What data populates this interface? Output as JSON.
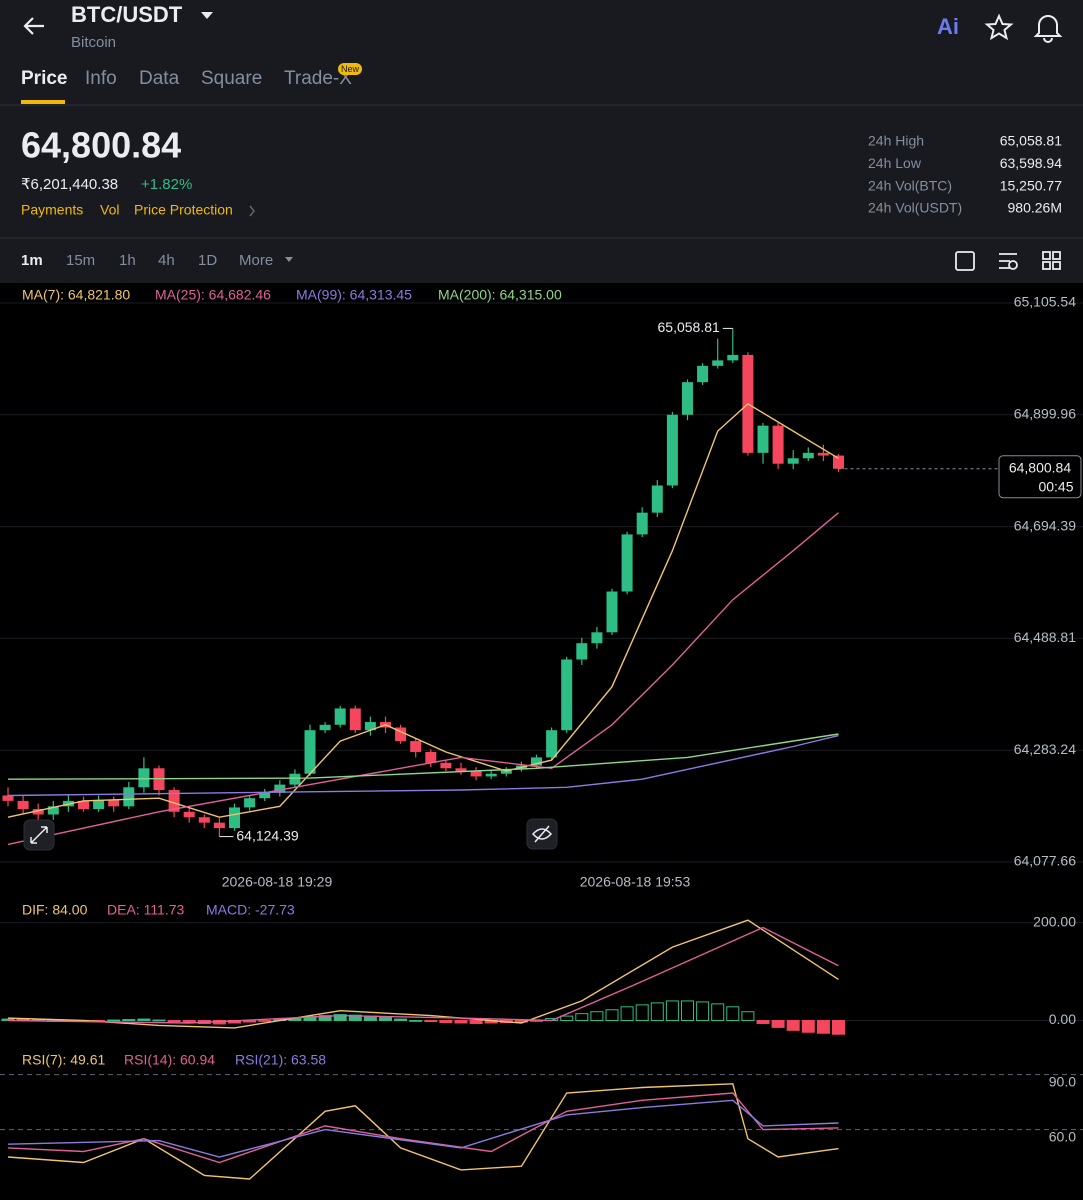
{
  "header": {
    "pair": "BTC/USDT",
    "name": "Bitcoin",
    "ai": "Ai"
  },
  "tabs": [
    "Price",
    "Info",
    "Data",
    "Square",
    "Trade-X"
  ],
  "tab_badge": "New",
  "ticker": {
    "price": "64,800.84",
    "fiat": "₹6,201,440.38",
    "change": "+1.82%",
    "links": [
      "Payments",
      "Vol",
      "Price Protection"
    ],
    "stats": [
      [
        "24h High",
        "65,058.81"
      ],
      [
        "24h Low",
        "63,598.94"
      ],
      [
        "24h Vol(BTC)",
        "15,250.77"
      ],
      [
        "24h Vol(USDT)",
        "980.26M"
      ]
    ]
  },
  "intervals": [
    "1m",
    "15m",
    "1h",
    "4h",
    "1D",
    "More"
  ],
  "chart_data": [
    {
      "type": "candlestick",
      "open": [
        64200,
        64190,
        64175,
        64165,
        64180,
        64190,
        64175,
        64192,
        64180,
        64215,
        64250,
        64210,
        64170,
        64160,
        64150,
        64140,
        64178,
        64195,
        64205,
        64220,
        64240,
        64320,
        64330,
        64360,
        64320,
        64335,
        64325,
        64300,
        64280,
        64260,
        64250,
        64245,
        64235,
        64240,
        64248,
        64255,
        64270,
        64320,
        64450,
        64480,
        64500,
        64575,
        64680,
        64720,
        64770,
        64900,
        64960,
        64990,
        65000,
        65010,
        64830,
        64880,
        64810,
        64820,
        64830,
        64825
      ],
      "high": [
        64215,
        64200,
        64185,
        64190,
        64200,
        64198,
        64200,
        64198,
        64225,
        64270,
        64255,
        64215,
        64178,
        64165,
        64158,
        64185,
        64200,
        64212,
        64228,
        64248,
        64330,
        64335,
        64365,
        64365,
        64345,
        64345,
        64330,
        64305,
        64285,
        64265,
        64260,
        64252,
        64245,
        64252,
        64262,
        64275,
        64325,
        64455,
        64490,
        64510,
        64580,
        64685,
        64730,
        64780,
        64905,
        64965,
        64995,
        65040,
        65058.81,
        65015,
        64885,
        64885,
        64835,
        64840,
        64845,
        64828
      ],
      "low": [
        64180,
        64165,
        64150,
        64155,
        64170,
        64170,
        64170,
        64170,
        64175,
        64205,
        64200,
        64160,
        64150,
        64140,
        64124.39,
        64135,
        64172,
        64190,
        64198,
        64215,
        64236,
        64315,
        64325,
        64315,
        64310,
        64315,
        64295,
        64270,
        64252,
        64245,
        64238,
        64228,
        64230,
        64235,
        64244,
        64250,
        64265,
        64315,
        64440,
        64470,
        64495,
        64570,
        64675,
        64712,
        64765,
        64890,
        64955,
        64985,
        64995,
        64825,
        64810,
        64800,
        64800,
        64815,
        64815,
        64795
      ],
      "close": [
        64190,
        64175,
        64165,
        64180,
        64190,
        64175,
        64192,
        64180,
        64215,
        64250,
        64210,
        64170,
        64160,
        64150,
        64140,
        64178,
        64195,
        64205,
        64220,
        64240,
        64320,
        64330,
        64360,
        64320,
        64335,
        64325,
        64300,
        64280,
        64260,
        64250,
        64245,
        64235,
        64240,
        64248,
        64255,
        64270,
        64320,
        64450,
        64480,
        64500,
        64575,
        64680,
        64720,
        64770,
        64900,
        64960,
        64990,
        65000,
        65010,
        64830,
        64880,
        64810,
        64820,
        64830,
        64825,
        64800.84
      ],
      "colors": {
        "up": "#2ebd85",
        "down": "#f6465d"
      },
      "series": [
        {
          "name": "MA(7): 64,821.80",
          "color": "#f0c56a",
          "x": [
            0,
            5,
            10,
            14,
            18,
            22,
            25,
            29,
            33,
            36,
            40,
            44,
            47,
            49,
            52,
            55
          ],
          "values": [
            64160,
            64190,
            64195,
            64160,
            64180,
            64300,
            64330,
            64280,
            64245,
            64265,
            64400,
            64650,
            64870,
            64920,
            64870,
            64820
          ]
        },
        {
          "name": "MA(25): 64,682.46",
          "color": "#e0609a",
          "x": [
            0,
            10,
            20,
            30,
            36,
            40,
            44,
            48,
            52,
            55
          ],
          "values": [
            64110,
            64170,
            64220,
            64270,
            64250,
            64330,
            64440,
            64560,
            64650,
            64720
          ]
        },
        {
          "name": "MA(99): 64,313.45",
          "color": "#8b7be0",
          "x": [
            0,
            15,
            30,
            37,
            42,
            47,
            52,
            55
          ],
          "values": [
            64200,
            64205,
            64210,
            64215,
            64230,
            64260,
            64290,
            64310
          ]
        },
        {
          "name": "MA(200): 64,315.00",
          "color": "#8ed68a",
          "x": [
            0,
            20,
            35,
            45,
            55
          ],
          "values": [
            64230,
            64232,
            64250,
            64270,
            64313
          ]
        }
      ],
      "ylim": [
        64077.66,
        65105.54
      ],
      "yticks": [
        {
          "value": 64077.66,
          "label": "64,077.66"
        },
        {
          "value": 64283.24,
          "label": "64,283.24"
        },
        {
          "value": 64488.81,
          "label": "64,488.81"
        },
        {
          "value": 64694.39,
          "label": "64,694.39"
        },
        {
          "value": 64899.96,
          "label": "64,899.96"
        },
        {
          "value": 65105.54,
          "label": "65,105.54"
        }
      ],
      "annotations": [
        {
          "value": 65058.81,
          "label": "65,058.81"
        },
        {
          "value": 64124.39,
          "label": "64,124.39"
        }
      ],
      "price_tag": {
        "value": 64800.84,
        "label": "64,800.84",
        "countdown": "00:45"
      },
      "x_labels": [
        "2026-08-18 19:29",
        "2026-08-18 19:53"
      ]
    },
    {
      "type": "macd",
      "values": [
        3,
        2,
        1,
        0,
        -1,
        -2,
        -1,
        1,
        2,
        3,
        1,
        -2,
        -4,
        -6,
        -7,
        -5,
        -3,
        -1,
        2,
        5,
        8,
        10,
        12,
        11,
        9,
        6,
        3,
        0,
        -2,
        -4,
        -5,
        -6,
        -5,
        -4,
        -3,
        -1,
        4,
        9,
        14,
        18,
        22,
        28,
        32,
        36,
        40,
        40,
        38,
        34,
        28,
        18,
        -6,
        -14,
        -20,
        -24,
        -26,
        -28
      ],
      "value_label": "MACD: -27.73",
      "colors": {
        "up": "#2ebd85",
        "down": "#f6465d"
      },
      "series": [
        {
          "name": "DIF: 84.00",
          "color": "#f0c56a",
          "x": [
            0,
            5,
            10,
            15,
            22,
            28,
            34,
            38,
            44,
            49,
            55
          ],
          "values": [
            5,
            0,
            -10,
            -15,
            20,
            10,
            -5,
            40,
            150,
            205,
            84
          ]
        },
        {
          "name": "DEA: 111.73",
          "color": "#e0609a",
          "x": [
            0,
            12,
            22,
            30,
            36,
            42,
            50,
            55
          ],
          "values": [
            0,
            -5,
            10,
            5,
            0,
            80,
            190,
            111.73
          ]
        }
      ],
      "ylim": [
        -50,
        236
      ],
      "yticks": [
        {
          "value": 0,
          "label": "0.00"
        },
        {
          "value": 200,
          "label": "200.00"
        }
      ]
    },
    {
      "type": "line",
      "series": [
        {
          "name": "RSI(7): 49.61",
          "color": "#f0c56a",
          "x": [
            0,
            5,
            9,
            13,
            16,
            21,
            23,
            26,
            30,
            34,
            37,
            42,
            48,
            49,
            51,
            55
          ],
          "values": [
            45,
            42,
            55,
            35,
            33,
            70,
            73,
            50,
            38,
            40,
            80,
            83,
            85,
            55,
            45,
            49.61
          ]
        },
        {
          "name": "RSI(14): 60.94",
          "color": "#e0609a",
          "x": [
            0,
            5,
            9,
            14,
            21,
            26,
            32,
            37,
            42,
            48,
            50,
            55
          ],
          "values": [
            50,
            48,
            55,
            42,
            62,
            55,
            48,
            70,
            76,
            80,
            60,
            60.94
          ]
        },
        {
          "name": "RSI(21): 63.58",
          "color": "#8b7be0",
          "x": [
            0,
            10,
            14,
            21,
            30,
            37,
            42,
            48,
            50,
            55
          ],
          "values": [
            52,
            54,
            45,
            60,
            50,
            68,
            72,
            76,
            62,
            63.58
          ]
        }
      ],
      "ylim": [
        27,
        98
      ],
      "yticks": [
        {
          "value": 60,
          "label": "60.0"
        },
        {
          "value": 90,
          "label": "90.0"
        }
      ]
    }
  ]
}
